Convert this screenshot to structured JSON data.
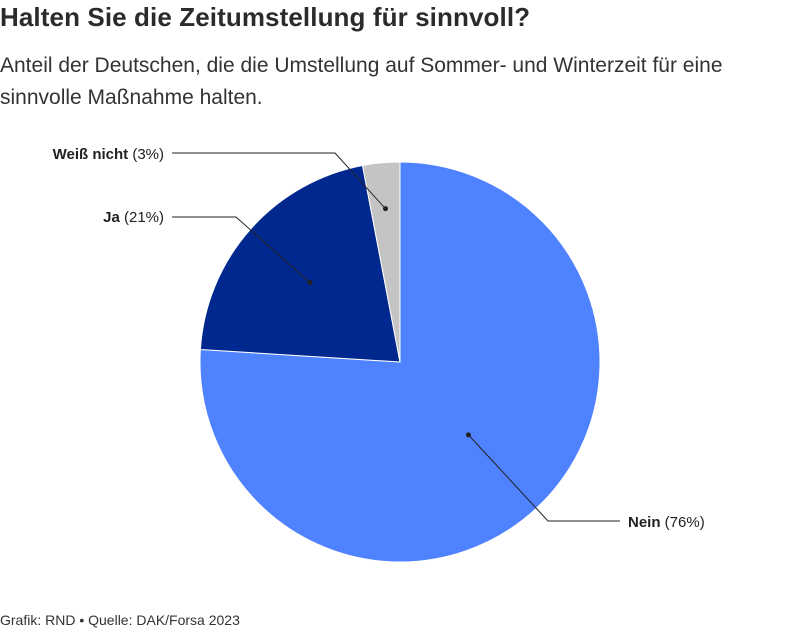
{
  "chart_data": {
    "type": "pie",
    "title": "Halten Sie die Zeitumstellung für sinnvoll?",
    "subtitle": "Anteil der Deutschen, die die Umstellung auf Sommer- und Winterzeit für eine sinnvolle Maßnahme halten.",
    "slices": [
      {
        "label": "Nein",
        "value": 76,
        "value_label": "(76%)",
        "color": "#4f82ff"
      },
      {
        "label": "Ja",
        "value": 21,
        "value_label": "(21%)",
        "color": "#00288e"
      },
      {
        "label": "Weiß nicht",
        "value": 3,
        "value_label": "(3%)",
        "color": "#c4c4c4"
      }
    ],
    "start": "top",
    "direction": "clockwise",
    "legend": "none"
  },
  "footer": "Grafik: RND • Quelle: DAK/Forsa 2023"
}
